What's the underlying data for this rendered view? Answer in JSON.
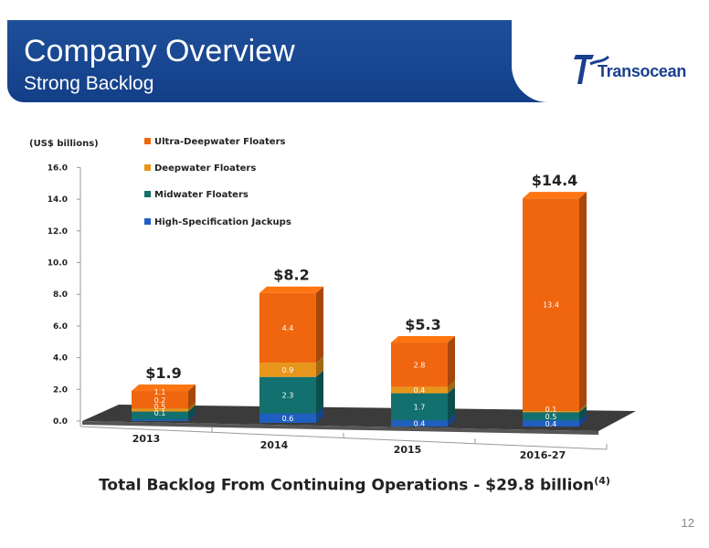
{
  "slide": {
    "title": "Company Overview",
    "subtitle": "Strong Backlog",
    "logo_text": "Transocean",
    "footer": "Total Backlog From Continuing Operations - $29.8 billion",
    "footer_note": "(4)",
    "page_number": "12"
  },
  "chart_data": {
    "type": "bar",
    "stacked": true,
    "unit_label": "(US$ billions)",
    "categories": [
      "2013",
      "2014",
      "2015",
      "2016-27"
    ],
    "totals": [
      "$1.9",
      "$8.2",
      "$5.3",
      "$14.4"
    ],
    "ylim": [
      0,
      16
    ],
    "yticks": [
      "0.0",
      "2.0",
      "4.0",
      "6.0",
      "8.0",
      "10.0",
      "12.0",
      "14.0",
      "16.0"
    ],
    "series": [
      {
        "name": "High-Specification Jackups",
        "color": "#1f5fbf",
        "values": [
          0.1,
          0.6,
          0.4,
          0.4
        ],
        "labels": [
          "0.1",
          "0.6",
          "0.4",
          "0.4"
        ]
      },
      {
        "name": "Midwater Floaters",
        "color": "#12706e",
        "values": [
          0.5,
          2.3,
          1.7,
          0.5
        ],
        "labels": [
          "0.5",
          "2.3",
          "1.7",
          "0.5"
        ]
      },
      {
        "name": "Deepwater Floaters",
        "color": "#e8961b",
        "values": [
          0.2,
          0.9,
          0.4,
          0.1
        ],
        "labels": [
          "0.2",
          "0.9",
          "0.4",
          "0.1"
        ]
      },
      {
        "name": "Ultra-Deepwater Floaters",
        "color": "#f0660f",
        "values": [
          1.1,
          4.4,
          2.8,
          13.4
        ],
        "labels": [
          "1.1",
          "4.4",
          "2.8",
          "13.4"
        ]
      }
    ],
    "legend_order": [
      "Ultra-Deepwater Floaters",
      "Deepwater Floaters",
      "Midwater Floaters",
      "High-Specification Jackups"
    ],
    "legend_position": "top-left"
  }
}
